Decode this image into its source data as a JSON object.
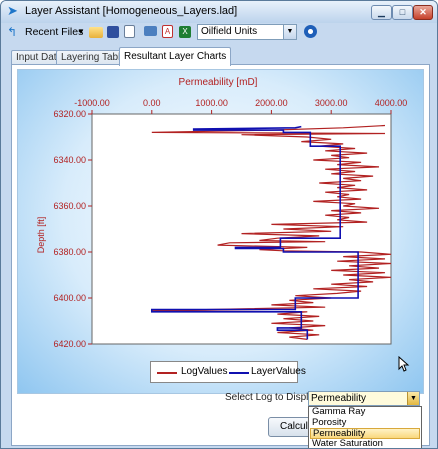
{
  "window": {
    "title": "Layer Assistant [Homogeneous_Layers.lad]"
  },
  "toolbar": {
    "recent_files_label": "Recent Files",
    "units_value": "Oilfield Units",
    "icons": [
      "app-menu-icon",
      "open-folder-icon",
      "save-icon",
      "document-icon",
      "monitor-icon",
      "pdf-icon",
      "excel-icon",
      "help-circle-icon"
    ]
  },
  "tabs": [
    {
      "label": "Input Data"
    },
    {
      "label": "Layering Tables"
    },
    {
      "label": "Resultant Layer Charts"
    }
  ],
  "chart_data": {
    "type": "line",
    "xlabel": "Permeability [mD]",
    "ylabel": "Depth [ft]",
    "xlim": [
      -1000,
      4000
    ],
    "ylim": [
      6320,
      6420
    ],
    "y_inverted": true,
    "x_axis_position": "top",
    "x_ticks": [
      "-1000.00",
      "0.00",
      "1000.00",
      "2000.00",
      "3000.00",
      "4000.00"
    ],
    "y_ticks": [
      "6320.00",
      "6340.00",
      "6360.00",
      "6380.00",
      "6400.00",
      "6420.00"
    ],
    "grid": false,
    "legend_position": "bottom-center",
    "series": [
      {
        "name": "LogValues",
        "color": "#b22222",
        "points": [
          [
            3900,
            6325
          ],
          [
            3200,
            6326
          ],
          [
            2000,
            6327
          ],
          [
            0,
            6328
          ],
          [
            3900,
            6328.5
          ],
          [
            1500,
            6329
          ],
          [
            2600,
            6330
          ],
          [
            3000,
            6331
          ],
          [
            2500,
            6332
          ],
          [
            3200,
            6333
          ],
          [
            2800,
            6334
          ],
          [
            3400,
            6335
          ],
          [
            2900,
            6336
          ],
          [
            3600,
            6337
          ],
          [
            3000,
            6338
          ],
          [
            3300,
            6339
          ],
          [
            2700,
            6340
          ],
          [
            3500,
            6341
          ],
          [
            3100,
            6342
          ],
          [
            3800,
            6343
          ],
          [
            2900,
            6344
          ],
          [
            3400,
            6345
          ],
          [
            3000,
            6346
          ],
          [
            3700,
            6347
          ],
          [
            3200,
            6348
          ],
          [
            3500,
            6349
          ],
          [
            2800,
            6350
          ],
          [
            3400,
            6351
          ],
          [
            3100,
            6352
          ],
          [
            3600,
            6353
          ],
          [
            2900,
            6354
          ],
          [
            3300,
            6355
          ],
          [
            3100,
            6356
          ],
          [
            3500,
            6357
          ],
          [
            2700,
            6358
          ],
          [
            3400,
            6359
          ],
          [
            3200,
            6360
          ],
          [
            3800,
            6361
          ],
          [
            3000,
            6362
          ],
          [
            3500,
            6363
          ],
          [
            2900,
            6364
          ],
          [
            3300,
            6365
          ],
          [
            3100,
            6366
          ],
          [
            3600,
            6367
          ],
          [
            2000,
            6368
          ],
          [
            3200,
            6369
          ],
          [
            2200,
            6370
          ],
          [
            3000,
            6371
          ],
          [
            1500,
            6372
          ],
          [
            2800,
            6373
          ],
          [
            2100,
            6374
          ],
          [
            1800,
            6375
          ],
          [
            2900,
            6375.5
          ],
          [
            1300,
            6376
          ],
          [
            1100,
            6377
          ],
          [
            2600,
            6378
          ],
          [
            1800,
            6379
          ],
          [
            2200,
            6379.5
          ],
          [
            3500,
            6380
          ],
          [
            4000,
            6381
          ],
          [
            3200,
            6382
          ],
          [
            3900,
            6383
          ],
          [
            3100,
            6384
          ],
          [
            4000,
            6385
          ],
          [
            3300,
            6386
          ],
          [
            3800,
            6387
          ],
          [
            3000,
            6388
          ],
          [
            3900,
            6389
          ],
          [
            3200,
            6390
          ],
          [
            4000,
            6391
          ],
          [
            3300,
            6392
          ],
          [
            3700,
            6393
          ],
          [
            3000,
            6394
          ],
          [
            3600,
            6395
          ],
          [
            2700,
            6396
          ],
          [
            3500,
            6397
          ],
          [
            3100,
            6398
          ],
          [
            2400,
            6399
          ],
          [
            3000,
            6400
          ],
          [
            2300,
            6401
          ],
          [
            2700,
            6402
          ],
          [
            2000,
            6403
          ],
          [
            2900,
            6404
          ],
          [
            1000,
            6405
          ],
          [
            0,
            6405.5
          ],
          [
            2600,
            6406
          ],
          [
            2100,
            6407
          ],
          [
            2800,
            6408
          ],
          [
            2200,
            6409
          ],
          [
            2700,
            6410
          ],
          [
            2000,
            6411
          ],
          [
            2900,
            6412
          ],
          [
            2300,
            6413
          ],
          [
            2700,
            6414
          ],
          [
            2100,
            6415
          ],
          [
            2800,
            6416
          ],
          [
            2300,
            6417
          ],
          [
            2600,
            6418
          ]
        ]
      },
      {
        "name": "LayerValues",
        "color": "#1010b0",
        "points": [
          [
            2500,
            6325.5
          ],
          [
            2400,
            6326
          ],
          [
            700,
            6326.5
          ],
          [
            700,
            6327
          ],
          [
            2200,
            6327
          ],
          [
            2200,
            6328
          ],
          [
            2650,
            6328
          ],
          [
            2650,
            6334
          ],
          [
            3150,
            6334
          ],
          [
            3150,
            6374
          ],
          [
            2150,
            6374
          ],
          [
            2150,
            6378
          ],
          [
            1400,
            6378
          ],
          [
            1400,
            6378.5
          ],
          [
            2200,
            6378.5
          ],
          [
            2200,
            6380
          ],
          [
            3450,
            6380
          ],
          [
            3450,
            6400
          ],
          [
            2400,
            6400
          ],
          [
            2400,
            6405
          ],
          [
            0,
            6405
          ],
          [
            0,
            6406
          ],
          [
            2500,
            6406
          ],
          [
            2500,
            6413
          ],
          [
            2100,
            6413
          ],
          [
            2100,
            6414
          ],
          [
            2600,
            6414
          ],
          [
            2600,
            6418
          ]
        ]
      }
    ]
  },
  "legend": {
    "items": [
      "LogValues",
      "LayerValues"
    ]
  },
  "log_select": {
    "label": "Select Log to Display",
    "value": "Permeability",
    "options": [
      "Gamma Ray",
      "Porosity",
      "Permeability",
      "Water Saturation"
    ],
    "highlighted_index": 2
  },
  "calculate_button": {
    "label": "Calculate"
  },
  "colors": {
    "window_frame": "#c6d9ef",
    "accent_blue": "#1f76c9",
    "log_red": "#b22222",
    "layer_blue": "#1010b0"
  }
}
